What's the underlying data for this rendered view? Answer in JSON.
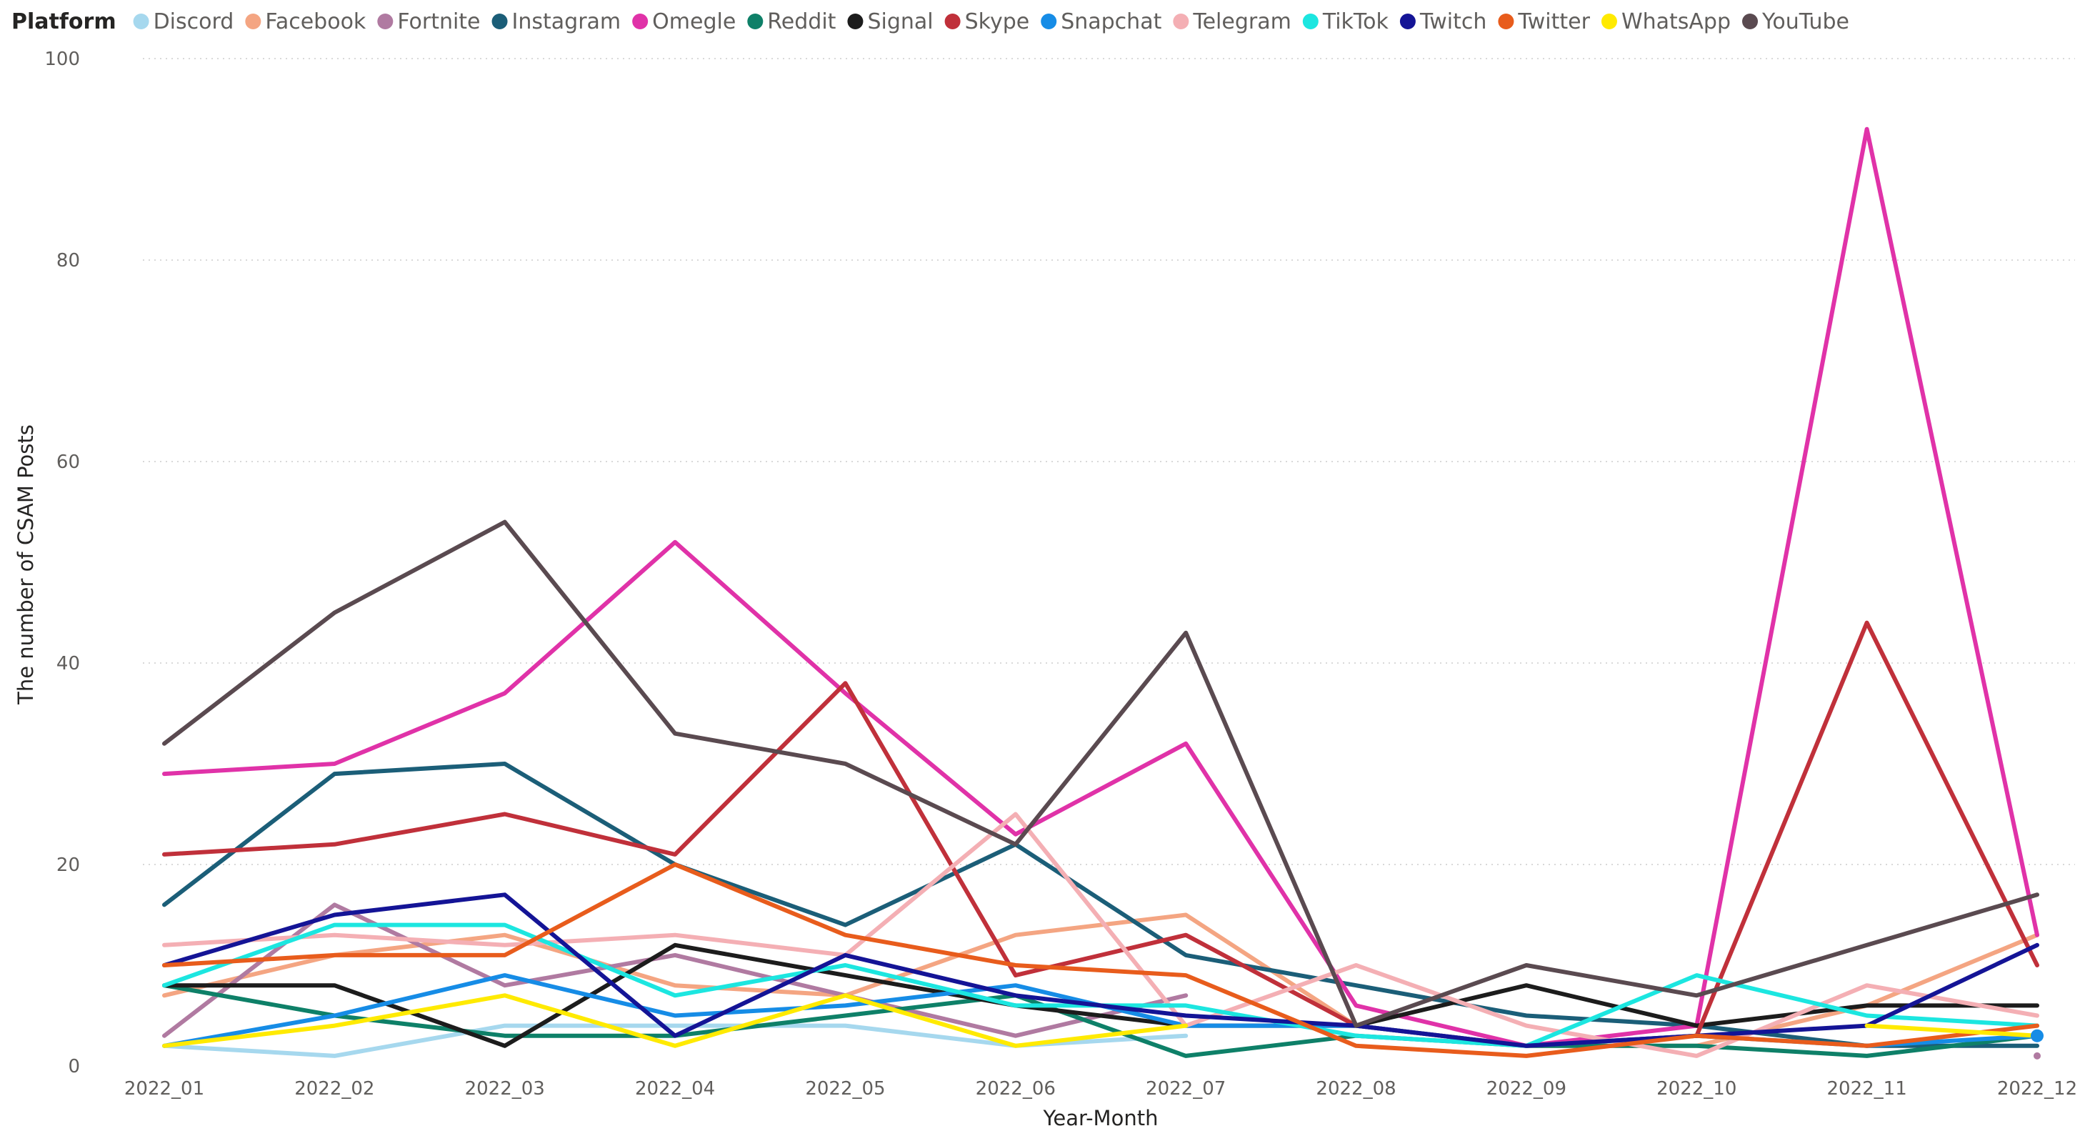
{
  "chart_data": {
    "type": "line",
    "legend_title": "Platform",
    "legend_position": "top-left",
    "xlabel": "Year-Month",
    "ylabel": "The number of CSAM Posts",
    "ylim": [
      0,
      100
    ],
    "y_ticks": [
      0,
      20,
      40,
      60,
      80,
      100
    ],
    "grid": true,
    "categories": [
      "2022_01",
      "2022_02",
      "2022_03",
      "2022_04",
      "2022_05",
      "2022_06",
      "2022_07",
      "2022_08",
      "2022_09",
      "2022_10",
      "2022_11",
      "2022_12"
    ],
    "series": [
      {
        "name": "Discord",
        "color": "#a6d8ee",
        "values": [
          2,
          1,
          4,
          4,
          4,
          2,
          3,
          null,
          null,
          null,
          null,
          null
        ]
      },
      {
        "name": "Facebook",
        "color": "#f4a582",
        "values": [
          7,
          11,
          13,
          8,
          7,
          13,
          15,
          4,
          2,
          2,
          6,
          13
        ]
      },
      {
        "name": "Fortnite",
        "color": "#b07aa1",
        "values": [
          3,
          16,
          8,
          11,
          7,
          3,
          7,
          null,
          null,
          null,
          null,
          1
        ]
      },
      {
        "name": "Instagram",
        "color": "#1b5e78",
        "values": [
          16,
          29,
          30,
          20,
          14,
          22,
          11,
          8,
          5,
          4,
          2,
          2
        ]
      },
      {
        "name": "Omegle",
        "color": "#e032a8",
        "values": [
          29,
          30,
          37,
          52,
          37,
          23,
          32,
          6,
          2,
          4,
          93,
          13
        ]
      },
      {
        "name": "Reddit",
        "color": "#0e8068",
        "values": [
          8,
          5,
          3,
          3,
          5,
          7,
          1,
          3,
          2,
          2,
          1,
          3
        ]
      },
      {
        "name": "Signal",
        "color": "#1c1c1c",
        "values": [
          8,
          8,
          2,
          12,
          9,
          6,
          4,
          4,
          8,
          4,
          6,
          6
        ]
      },
      {
        "name": "Skype",
        "color": "#c0303a",
        "values": [
          21,
          22,
          25,
          21,
          38,
          9,
          13,
          4,
          2,
          3,
          44,
          10
        ]
      },
      {
        "name": "Snapchat",
        "color": "#168ce6",
        "values": [
          2,
          5,
          9,
          5,
          6,
          8,
          4,
          4,
          2,
          3,
          2,
          3
        ]
      },
      {
        "name": "Telegram",
        "color": "#f4afb4",
        "values": [
          12,
          13,
          12,
          13,
          11,
          25,
          4,
          10,
          4,
          1,
          8,
          5
        ]
      },
      {
        "name": "TikTok",
        "color": "#1ce6e0",
        "values": [
          8,
          14,
          14,
          7,
          10,
          6,
          6,
          3,
          2,
          9,
          5,
          4
        ]
      },
      {
        "name": "Twitch",
        "color": "#141496",
        "values": [
          10,
          15,
          17,
          3,
          11,
          7,
          5,
          4,
          2,
          3,
          4,
          12
        ]
      },
      {
        "name": "Twitter",
        "color": "#e85c1c",
        "values": [
          10,
          11,
          11,
          20,
          13,
          10,
          9,
          2,
          1,
          3,
          2,
          4
        ]
      },
      {
        "name": "WhatsApp",
        "color": "#ffea00",
        "values": [
          2,
          4,
          7,
          2,
          7,
          2,
          4,
          null,
          null,
          null,
          4,
          3
        ]
      },
      {
        "name": "YouTube",
        "color": "#5a4a50",
        "values": [
          32,
          45,
          54,
          33,
          30,
          22,
          43,
          4,
          10,
          7,
          12,
          17
        ]
      }
    ]
  }
}
